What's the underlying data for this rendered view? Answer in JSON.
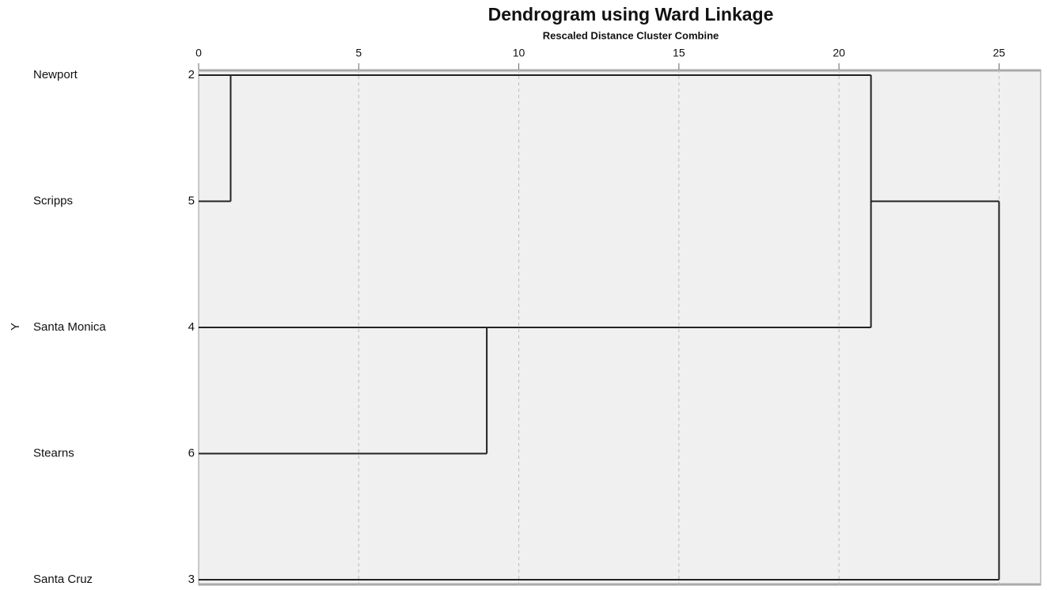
{
  "chart_data": {
    "type": "dendrogram",
    "title": "Dendrogram using Ward Linkage",
    "subtitle": "Rescaled Distance Cluster Combine",
    "y_label": "Y",
    "leaves": [
      {
        "label": "Newport",
        "case": 2
      },
      {
        "label": "Scripps",
        "case": 5
      },
      {
        "label": "Santa Monica",
        "case": 4
      },
      {
        "label": "Stearns",
        "case": 6
      },
      {
        "label": "Santa Cruz",
        "case": 3
      }
    ],
    "merges": [
      {
        "children": [
          0,
          1
        ],
        "distance": 1
      },
      {
        "children": [
          2,
          3
        ],
        "distance": 9
      },
      {
        "children": [
          5,
          6
        ],
        "distance": 21
      },
      {
        "children": [
          7,
          4
        ],
        "distance": 25
      }
    ],
    "xlim": [
      0,
      26.3
    ],
    "xticks": [
      0,
      5,
      10,
      15,
      20,
      25
    ],
    "grid": true,
    "line_color": "#222222",
    "plot_background": "#f0f0f0"
  }
}
